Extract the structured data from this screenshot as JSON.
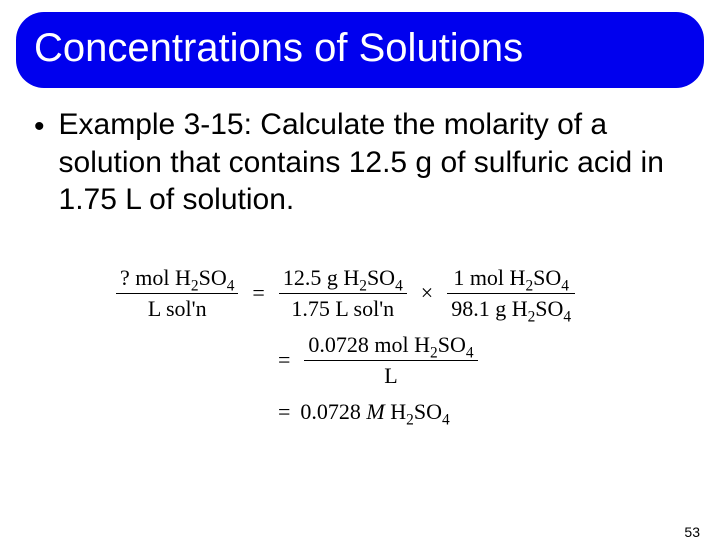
{
  "title": "Concentrations of Solutions",
  "bullet": "•",
  "body_text": "Example 3-15: Calculate the molarity of a solution that contains 12.5 g of sulfuric acid in 1.75 L of solution.",
  "eq": {
    "line1": {
      "lhs_num_prefix": "? mol H",
      "lhs_num_sub1": "2",
      "lhs_num_mid": "SO",
      "lhs_num_sub2": "4",
      "lhs_den": "L sol'n",
      "eq_sign": "=",
      "r1_num_prefix": "12.5 g H",
      "r1_num_sub1": "2",
      "r1_num_mid": "SO",
      "r1_num_sub2": "4",
      "r1_den": "1.75 L sol'n",
      "times": "×",
      "r2_num_prefix": "1 mol H",
      "r2_num_sub1": "2",
      "r2_num_mid": "SO",
      "r2_num_sub2": "4",
      "r2_den_prefix": "98.1 g H",
      "r2_den_sub1": "2",
      "r2_den_mid": "SO",
      "r2_den_sub2": "4"
    },
    "line2": {
      "eq_sign": "=",
      "num_prefix": "0.0728 mol H",
      "num_sub1": "2",
      "num_mid": "SO",
      "num_sub2": "4",
      "den": "L"
    },
    "line3": {
      "eq_sign": "=",
      "val": "0.0728 ",
      "unit": "M",
      "tail_prefix": " H",
      "tail_sub1": "2",
      "tail_mid": "SO",
      "tail_sub2": "4"
    }
  },
  "page_number": "53",
  "colors": {
    "title_bg": "#0000ee",
    "title_fg": "#ffffff",
    "body_fg": "#000000",
    "page_bg": "#ffffff"
  }
}
